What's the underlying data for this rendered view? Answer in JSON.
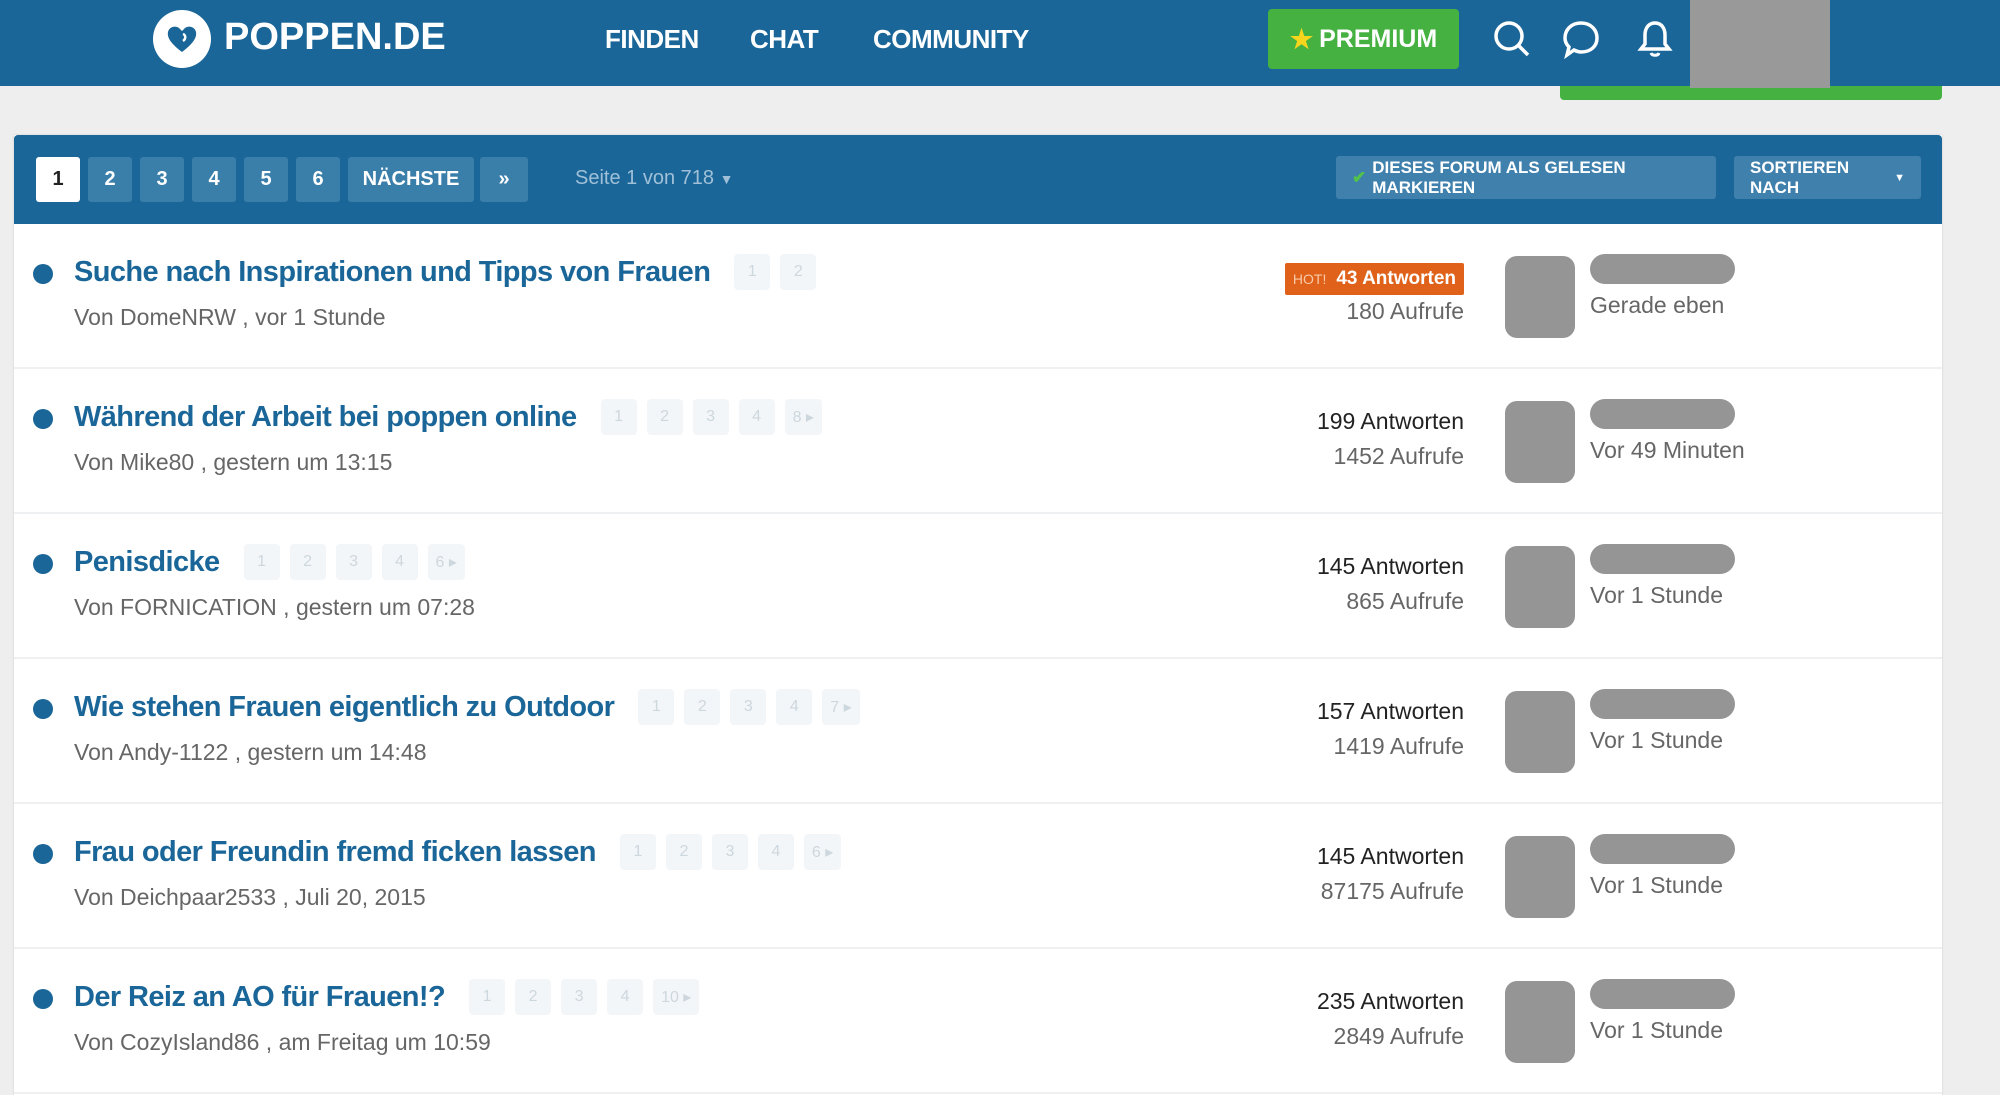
{
  "header": {
    "brand": "POPPEN.DE",
    "nav": [
      "FINDEN",
      "CHAT",
      "COMMUNITY"
    ],
    "premium_label": "PREMIUM",
    "icons": [
      "search-icon",
      "chat-bubble-icon",
      "bell-icon"
    ]
  },
  "toolbar": {
    "pages": [
      "1",
      "2",
      "3",
      "4",
      "5",
      "6"
    ],
    "current_page": "1",
    "next_label": "NÄCHSTE",
    "last_label": "»",
    "page_info": "Seite 1 von 718",
    "mark_read_label": "DIESES FORUM ALS GELESEN MARKIEREN",
    "sort_label": "SORTIEREN NACH"
  },
  "colors": {
    "brand_blue": "#1b6698",
    "premium_green": "#45b140",
    "hot_orange": "#e0621a"
  },
  "threads": [
    {
      "title": "Suche nach Inspirationen und Tipps von Frauen",
      "pages": [
        "1",
        "2"
      ],
      "meta": "Von DomeNRW , vor 1 Stunde",
      "hot_label": "HOT!",
      "replies": "43 Antworten",
      "views": "180 Aufrufe",
      "last_time": "Gerade eben"
    },
    {
      "title": "Während der Arbeit bei poppen online",
      "pages": [
        "1",
        "2",
        "3",
        "4",
        "8 ▸"
      ],
      "meta": "Von Mike80 , gestern um 13:15",
      "replies": "199 Antworten",
      "views": "1452 Aufrufe",
      "last_time": "Vor 49 Minuten"
    },
    {
      "title": "Penisdicke",
      "pages": [
        "1",
        "2",
        "3",
        "4",
        "6 ▸"
      ],
      "meta": "Von FORNICATION , gestern um 07:28",
      "replies": "145 Antworten",
      "views": "865 Aufrufe",
      "last_time": "Vor 1 Stunde"
    },
    {
      "title": "Wie stehen Frauen eigentlich zu Outdoor",
      "pages": [
        "1",
        "2",
        "3",
        "4",
        "7 ▸"
      ],
      "meta": "Von Andy-1122 , gestern um 14:48",
      "replies": "157 Antworten",
      "views": "1419 Aufrufe",
      "last_time": "Vor 1 Stunde"
    },
    {
      "title": "Frau oder Freundin fremd ficken lassen",
      "pages": [
        "1",
        "2",
        "3",
        "4",
        "6 ▸"
      ],
      "meta": "Von Deichpaar2533 , Juli 20, 2015",
      "replies": "145 Antworten",
      "views": "87175 Aufrufe",
      "last_time": "Vor 1 Stunde"
    },
    {
      "title": "Der Reiz an AO für Frauen!?",
      "pages": [
        "1",
        "2",
        "3",
        "4",
        "10 ▸"
      ],
      "meta": "Von CozyIsland86 , am Freitag um 10:59",
      "replies": "235 Antworten",
      "views": "2849 Aufrufe",
      "last_time": "Vor 1 Stunde"
    }
  ]
}
